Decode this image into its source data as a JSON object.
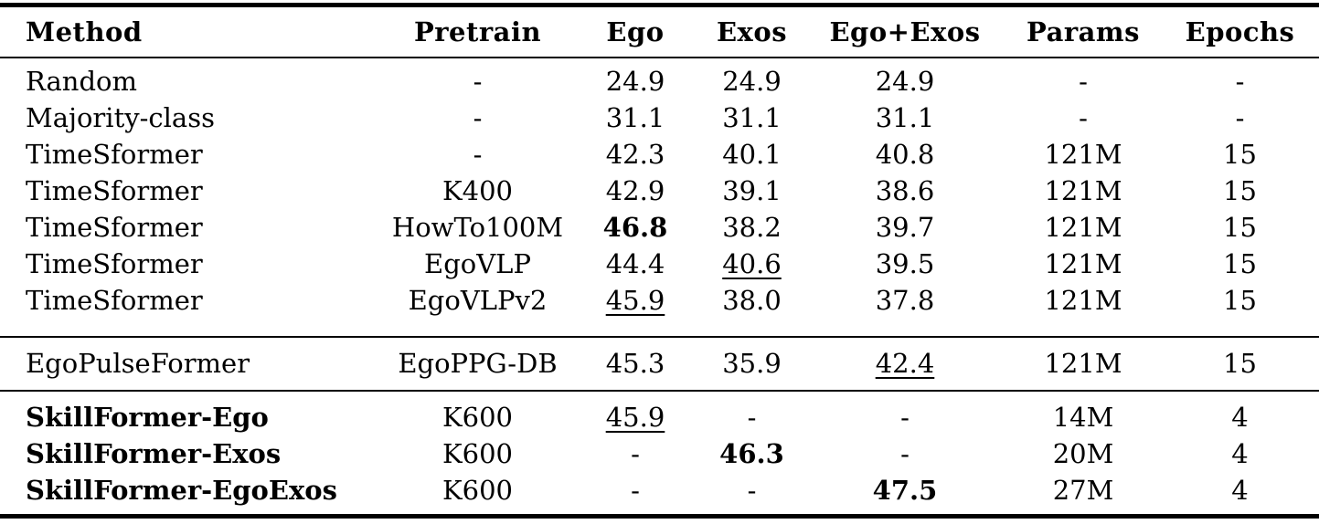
{
  "colors": {
    "background": "#ffffff",
    "text": "#000000",
    "rule": "#000000"
  },
  "table": {
    "header": [
      {
        "label": "Method"
      },
      {
        "label": "Pretrain"
      },
      {
        "label": "Ego"
      },
      {
        "label": "Exos"
      },
      {
        "label": "Ego+Exos"
      },
      {
        "label": "Params"
      },
      {
        "label": "Epochs"
      }
    ],
    "column_keys": [
      "method",
      "pretrain",
      "ego",
      "exos",
      "ego-exos",
      "params",
      "epochs"
    ],
    "groups": [
      {
        "name": "baselines",
        "rows": [
          {
            "cells": [
              {
                "t": "Random"
              },
              {
                "t": "-"
              },
              {
                "t": "24.9"
              },
              {
                "t": "24.9"
              },
              {
                "t": "24.9"
              },
              {
                "t": "-"
              },
              {
                "t": "-"
              }
            ]
          },
          {
            "cells": [
              {
                "t": "Majority-class"
              },
              {
                "t": "-"
              },
              {
                "t": "31.1"
              },
              {
                "t": "31.1"
              },
              {
                "t": "31.1"
              },
              {
                "t": "-"
              },
              {
                "t": "-"
              }
            ]
          },
          {
            "cells": [
              {
                "t": "TimeSformer"
              },
              {
                "t": "-"
              },
              {
                "t": "42.3"
              },
              {
                "t": "40.1"
              },
              {
                "t": "40.8"
              },
              {
                "t": "121M"
              },
              {
                "t": "15"
              }
            ]
          },
          {
            "cells": [
              {
                "t": "TimeSformer"
              },
              {
                "t": "K400"
              },
              {
                "t": "42.9"
              },
              {
                "t": "39.1"
              },
              {
                "t": "38.6"
              },
              {
                "t": "121M"
              },
              {
                "t": "15"
              }
            ]
          },
          {
            "cells": [
              {
                "t": "TimeSformer"
              },
              {
                "t": "HowTo100M"
              },
              {
                "t": "46.8",
                "b": true
              },
              {
                "t": "38.2"
              },
              {
                "t": "39.7"
              },
              {
                "t": "121M"
              },
              {
                "t": "15"
              }
            ]
          },
          {
            "cells": [
              {
                "t": "TimeSformer"
              },
              {
                "t": "EgoVLP"
              },
              {
                "t": "44.4"
              },
              {
                "t": "40.6",
                "u": true
              },
              {
                "t": "39.5"
              },
              {
                "t": "121M"
              },
              {
                "t": "15"
              }
            ]
          },
          {
            "cells": [
              {
                "t": "TimeSformer"
              },
              {
                "t": "EgoVLPv2"
              },
              {
                "t": "45.9",
                "u": true
              },
              {
                "t": "38.0"
              },
              {
                "t": "37.8"
              },
              {
                "t": "121M"
              },
              {
                "t": "15"
              }
            ]
          }
        ]
      },
      {
        "name": "egopulseformer",
        "rows": [
          {
            "cells": [
              {
                "t": "EgoPulseFormer"
              },
              {
                "t": "EgoPPG-DB"
              },
              {
                "t": "45.3"
              },
              {
                "t": "35.9"
              },
              {
                "t": "42.4",
                "u": true
              },
              {
                "t": "121M"
              },
              {
                "t": "15"
              }
            ]
          }
        ]
      },
      {
        "name": "skillformer",
        "rows": [
          {
            "cells": [
              {
                "t": "SkillFormer-Ego",
                "b": true
              },
              {
                "t": "K600"
              },
              {
                "t": "45.9",
                "u": true
              },
              {
                "t": "-"
              },
              {
                "t": "-"
              },
              {
                "t": "14M"
              },
              {
                "t": "4"
              }
            ]
          },
          {
            "cells": [
              {
                "t": "SkillFormer-Exos",
                "b": true
              },
              {
                "t": "K600"
              },
              {
                "t": "-"
              },
              {
                "t": "46.3",
                "b": true
              },
              {
                "t": "-"
              },
              {
                "t": "20M"
              },
              {
                "t": "4"
              }
            ]
          },
          {
            "cells": [
              {
                "t": "SkillFormer-EgoExos",
                "b": true
              },
              {
                "t": "K600"
              },
              {
                "t": "-"
              },
              {
                "t": "-"
              },
              {
                "t": "47.5",
                "b": true
              },
              {
                "t": "27M"
              },
              {
                "t": "4"
              }
            ]
          }
        ]
      }
    ]
  }
}
